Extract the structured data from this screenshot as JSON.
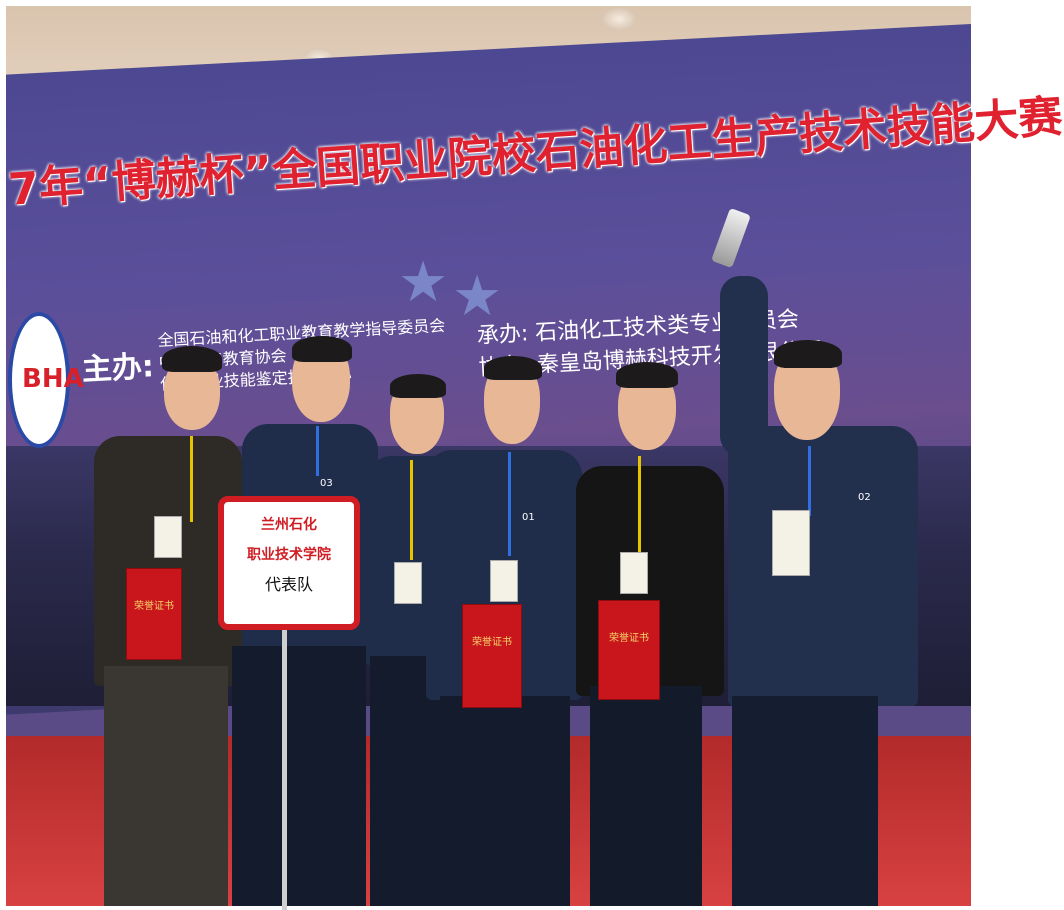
{
  "banner": {
    "title": "7年“博赫杯”全国职业院校石油化工生产技术技能大赛",
    "organizer_label": "主办:",
    "organizer_lines": [
      "全国石油和化工职业教育教学指导委员会",
      "中国化工教育协会",
      "化工职业技能鉴定指导中心"
    ],
    "coorganizer_lines": [
      "承办: 石油化工技术类专业委员会",
      "协办: 秦皇岛博赫科技开发有限公司"
    ],
    "logo_text": "BHA"
  },
  "sign": {
    "line1": "兰州石化",
    "line2": "职业技术学院",
    "line3": "代表队"
  },
  "badges": [
    "03",
    "01",
    "02"
  ],
  "certificate_label": "荣誉证书",
  "colors": {
    "title_red": "#e0212f",
    "banner_purple": "#4d4892",
    "carpet_red": "#c93333",
    "uniform_navy": "#1f2c4a"
  }
}
